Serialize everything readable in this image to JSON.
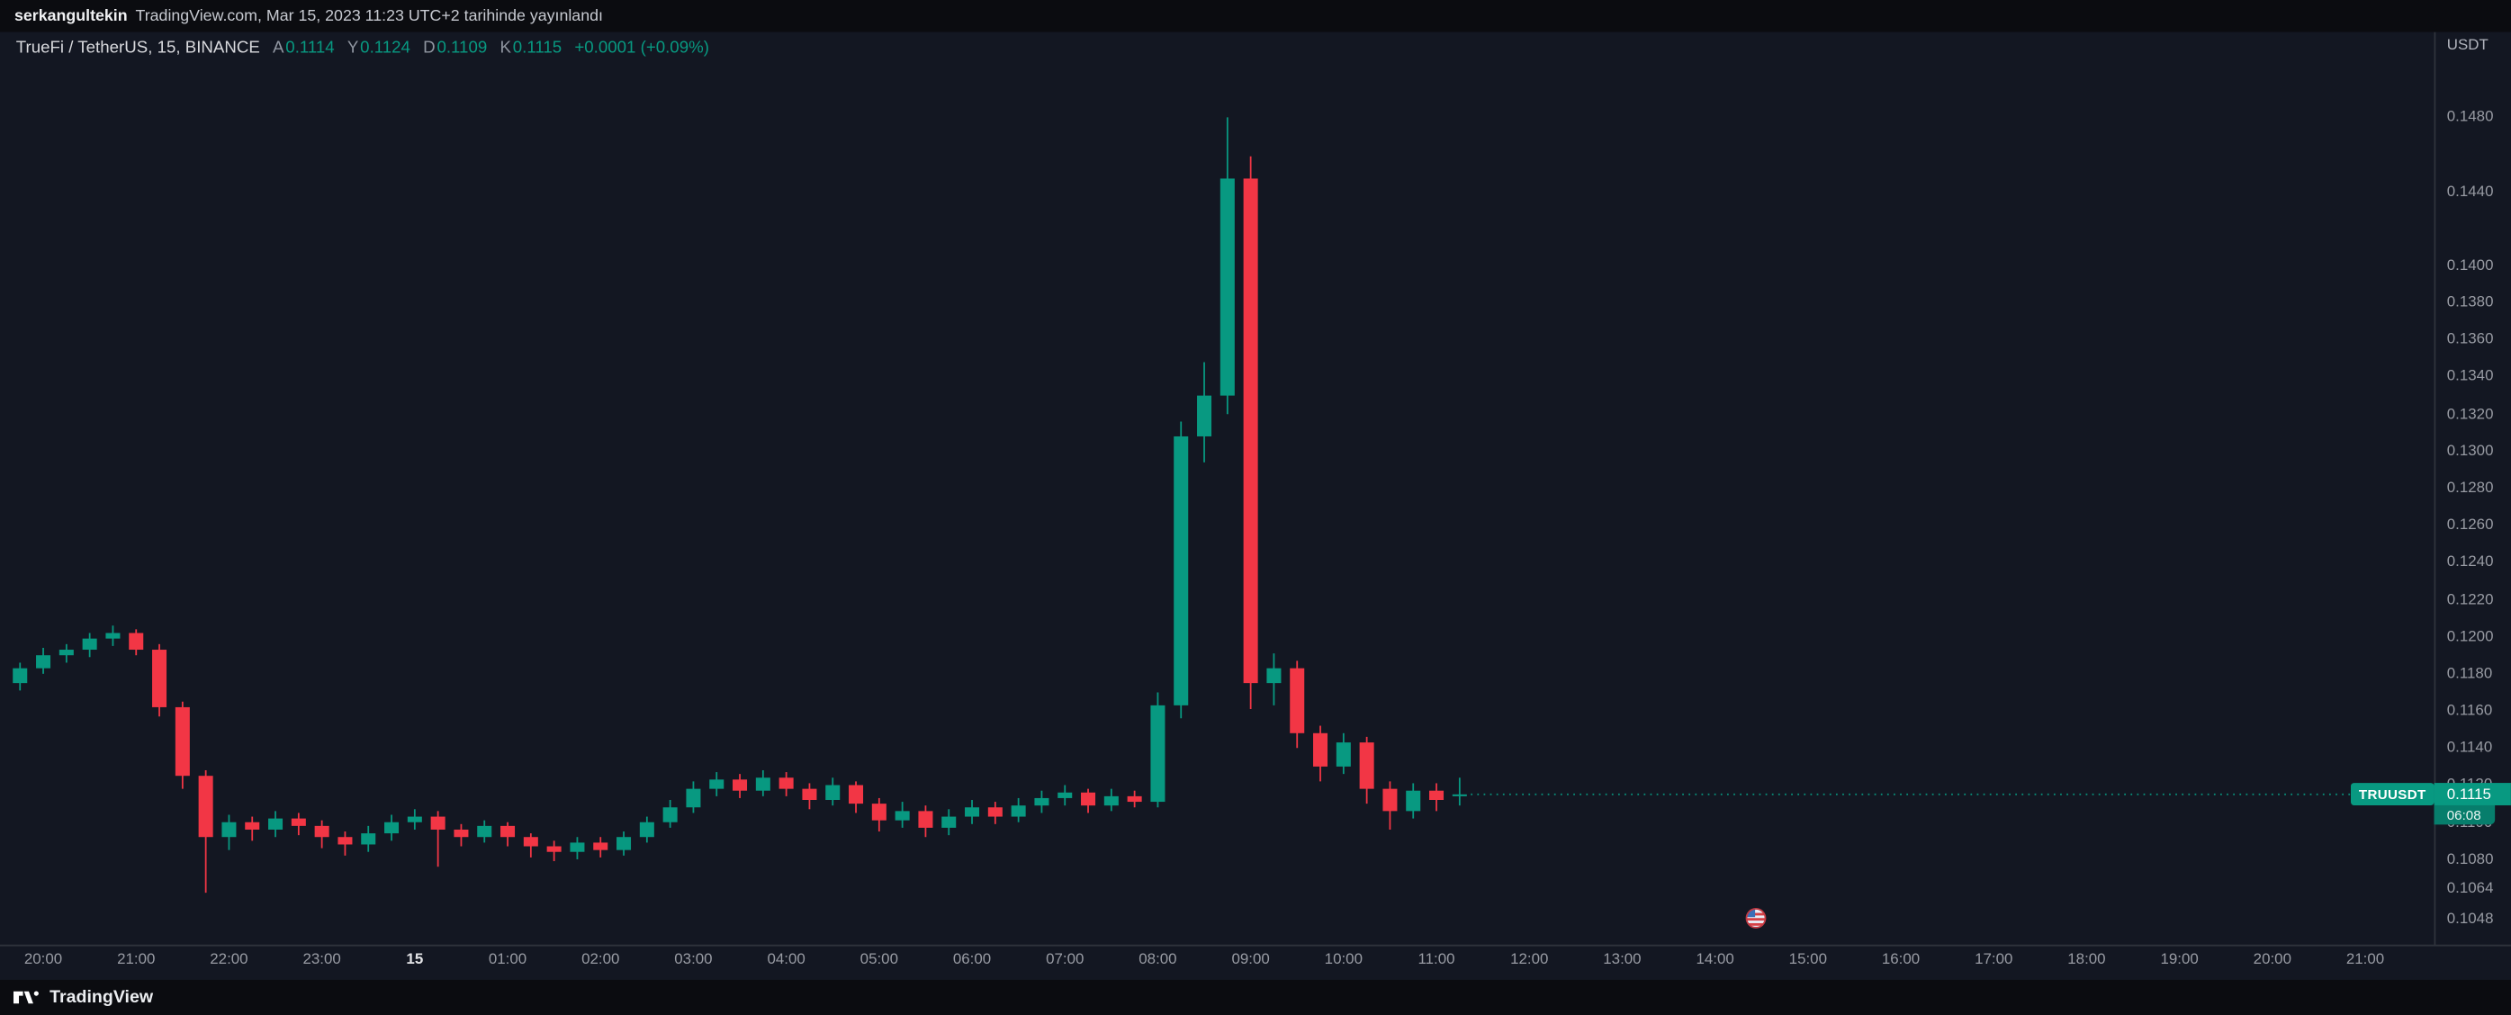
{
  "topbar": {
    "username": "serkangultekin",
    "published": "TradingView.com, Mar 15, 2023 11:23 UTC+2 tarihinde yayınlandı"
  },
  "legend": {
    "symbol": "TrueFi / TetherUS, 15, BINANCE",
    "ohlc": [
      {
        "label": "A",
        "value": "0.1114"
      },
      {
        "label": "Y",
        "value": "0.1124"
      },
      {
        "label": "D",
        "value": "0.1109"
      },
      {
        "label": "K",
        "value": "0.1115"
      }
    ],
    "change": "+0.0001 (+0.09%)"
  },
  "price_scale": {
    "currency": "USDT"
  },
  "badge": {
    "symbol": "TRUUSDT",
    "price": "0.1115",
    "countdown": "06:08"
  },
  "footer": {
    "brand": "TradingView"
  },
  "colors": {
    "up": "#089981",
    "down": "#f23645",
    "badge": "#089981",
    "countdown_badge": "#077e6c",
    "background": "#131722",
    "frame_background": "#0b0c10",
    "text_primary": "#d9dade",
    "text_muted": "#989ba3"
  },
  "chart_data": {
    "type": "candlestick",
    "title": "TrueFi / TetherUS, 15, BINANCE",
    "interval_minutes": 15,
    "quote_currency": "USDT",
    "grid": false,
    "legend_position": "top-left",
    "ylim": [
      0.1034,
      0.1526
    ],
    "last_price": 0.1115,
    "last_bar": {
      "open": 0.1114,
      "high": 0.1124,
      "low": 0.1109,
      "close": 0.1115,
      "change": "+0.0001 (+0.09%)"
    },
    "y_ticks": [
      "0.1480",
      "0.1440",
      "0.1400",
      "0.1380",
      "0.1360",
      "0.1340",
      "0.1320",
      "0.1300",
      "0.1280",
      "0.1260",
      "0.1240",
      "0.1220",
      "0.1200",
      "0.1180",
      "0.1160",
      "0.1140",
      "0.1120",
      "0.1100",
      "0.1080",
      "0.1064",
      "0.1048"
    ],
    "x_ticks": [
      "20:00",
      "21:00",
      "22:00",
      "23:00",
      "15",
      "01:00",
      "02:00",
      "03:00",
      "04:00",
      "05:00",
      "06:00",
      "07:00",
      "08:00",
      "09:00",
      "10:00",
      "11:00",
      "12:00",
      "13:00",
      "14:00",
      "15:00",
      "16:00",
      "17:00",
      "18:00",
      "19:00",
      "20:00",
      "21:00"
    ],
    "x_major_tick": "15",
    "event_marker": {
      "time": "14:30",
      "type": "economic-event-flag"
    },
    "candles_format": [
      "time",
      "open",
      "high",
      "low",
      "close"
    ],
    "candles": [
      [
        "19:45",
        0.1175,
        0.1186,
        0.1171,
        0.1183
      ],
      [
        "20:00",
        0.1183,
        0.1194,
        0.118,
        0.119
      ],
      [
        "20:15",
        0.119,
        0.1196,
        0.1186,
        0.1193
      ],
      [
        "20:30",
        0.1193,
        0.1202,
        0.1189,
        0.1199
      ],
      [
        "20:45",
        0.1199,
        0.1206,
        0.1195,
        0.1202
      ],
      [
        "21:00",
        0.1202,
        0.1204,
        0.119,
        0.1193
      ],
      [
        "21:15",
        0.1193,
        0.1196,
        0.1157,
        0.1162
      ],
      [
        "21:30",
        0.1162,
        0.1165,
        0.1118,
        0.1125
      ],
      [
        "21:45",
        0.1125,
        0.1128,
        0.1062,
        0.1092
      ],
      [
        "22:00",
        0.1092,
        0.1104,
        0.1085,
        0.11
      ],
      [
        "22:15",
        0.11,
        0.1103,
        0.109,
        0.1096
      ],
      [
        "22:30",
        0.1096,
        0.1106,
        0.1092,
        0.1102
      ],
      [
        "22:45",
        0.1102,
        0.1105,
        0.1093,
        0.1098
      ],
      [
        "23:00",
        0.1098,
        0.1101,
        0.1086,
        0.1092
      ],
      [
        "23:15",
        0.1092,
        0.1095,
        0.1082,
        0.1088
      ],
      [
        "23:30",
        0.1088,
        0.1098,
        0.1084,
        0.1094
      ],
      [
        "23:45",
        0.1094,
        0.1104,
        0.109,
        0.11
      ],
      [
        "00:00",
        0.11,
        0.1107,
        0.1096,
        0.1103
      ],
      [
        "00:15",
        0.1103,
        0.1106,
        0.1076,
        0.1096
      ],
      [
        "00:30",
        0.1096,
        0.1099,
        0.1087,
        0.1092
      ],
      [
        "00:45",
        0.1092,
        0.1101,
        0.1089,
        0.1098
      ],
      [
        "01:00",
        0.1098,
        0.11,
        0.1087,
        0.1092
      ],
      [
        "01:15",
        0.1092,
        0.1094,
        0.1081,
        0.1087
      ],
      [
        "01:30",
        0.1087,
        0.109,
        0.1079,
        0.1084
      ],
      [
        "01:45",
        0.1084,
        0.1092,
        0.108,
        0.1089
      ],
      [
        "02:00",
        0.1089,
        0.1092,
        0.1081,
        0.1085
      ],
      [
        "02:15",
        0.1085,
        0.1095,
        0.1082,
        0.1092
      ],
      [
        "02:30",
        0.1092,
        0.1103,
        0.1089,
        0.11
      ],
      [
        "02:45",
        0.11,
        0.1112,
        0.1097,
        0.1108
      ],
      [
        "03:00",
        0.1108,
        0.1122,
        0.1105,
        0.1118
      ],
      [
        "03:15",
        0.1118,
        0.1127,
        0.1114,
        0.1123
      ],
      [
        "03:30",
        0.1123,
        0.1126,
        0.1113,
        0.1117
      ],
      [
        "03:45",
        0.1117,
        0.1128,
        0.1114,
        0.1124
      ],
      [
        "04:00",
        0.1124,
        0.1127,
        0.1114,
        0.1118
      ],
      [
        "04:15",
        0.1118,
        0.1121,
        0.1107,
        0.1112
      ],
      [
        "04:30",
        0.1112,
        0.1124,
        0.1109,
        0.112
      ],
      [
        "04:45",
        0.112,
        0.1122,
        0.1105,
        0.111
      ],
      [
        "05:00",
        0.111,
        0.1113,
        0.1095,
        0.1101
      ],
      [
        "05:15",
        0.1101,
        0.1111,
        0.1097,
        0.1106
      ],
      [
        "05:30",
        0.1106,
        0.1109,
        0.1092,
        0.1097
      ],
      [
        "05:45",
        0.1097,
        0.1107,
        0.1093,
        0.1103
      ],
      [
        "06:00",
        0.1103,
        0.1112,
        0.1099,
        0.1108
      ],
      [
        "06:15",
        0.1108,
        0.1111,
        0.1099,
        0.1103
      ],
      [
        "06:30",
        0.1103,
        0.1113,
        0.11,
        0.1109
      ],
      [
        "06:45",
        0.1109,
        0.1117,
        0.1105,
        0.1113
      ],
      [
        "07:00",
        0.1113,
        0.112,
        0.1109,
        0.1116
      ],
      [
        "07:15",
        0.1116,
        0.1118,
        0.1105,
        0.1109
      ],
      [
        "07:30",
        0.1109,
        0.1118,
        0.1106,
        0.1114
      ],
      [
        "07:45",
        0.1114,
        0.1117,
        0.1108,
        0.1111
      ],
      [
        "08:00",
        0.1111,
        0.117,
        0.1108,
        0.1163
      ],
      [
        "08:15",
        0.1163,
        0.1316,
        0.1156,
        0.1308
      ],
      [
        "08:30",
        0.1308,
        0.1348,
        0.1294,
        0.133
      ],
      [
        "08:45",
        0.133,
        0.148,
        0.132,
        0.1447
      ],
      [
        "09:00",
        0.1447,
        0.1459,
        0.1161,
        0.1175
      ],
      [
        "09:15",
        0.1175,
        0.1191,
        0.1163,
        0.1183
      ],
      [
        "09:30",
        0.1183,
        0.1187,
        0.114,
        0.1148
      ],
      [
        "09:45",
        0.1148,
        0.1152,
        0.1122,
        0.113
      ],
      [
        "10:00",
        0.113,
        0.1148,
        0.1126,
        0.1143
      ],
      [
        "10:15",
        0.1143,
        0.1146,
        0.111,
        0.1118
      ],
      [
        "10:30",
        0.1118,
        0.1122,
        0.1096,
        0.1106
      ],
      [
        "10:45",
        0.1106,
        0.1121,
        0.1102,
        0.1117
      ],
      [
        "11:00",
        0.1117,
        0.1121,
        0.1106,
        0.1112
      ],
      [
        "11:15",
        0.1114,
        0.1124,
        0.1109,
        0.1115
      ]
    ]
  }
}
